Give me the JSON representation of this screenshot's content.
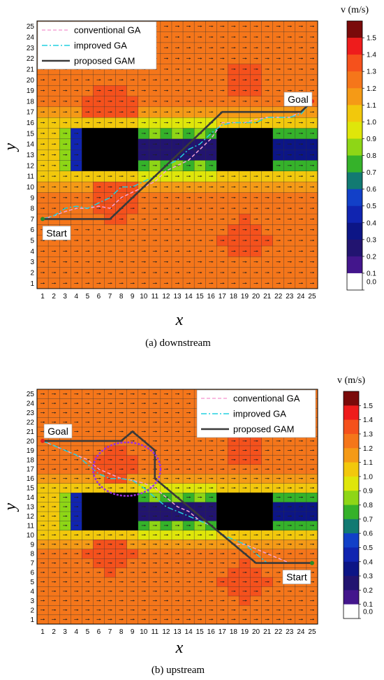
{
  "chart_data": [
    {
      "type": "heatmap",
      "caption": "(a) downstream",
      "xlabel": "x",
      "ylabel": "y",
      "x_ticks": [
        "1",
        "2",
        "3",
        "4",
        "5",
        "6",
        "7",
        "8",
        "9",
        "10",
        "11",
        "12",
        "13",
        "14",
        "15",
        "16",
        "17",
        "18",
        "19",
        "20",
        "21",
        "22",
        "23",
        "24",
        "25"
      ],
      "y_ticks": [
        "1",
        "2",
        "3",
        "4",
        "5",
        "6",
        "7",
        "8",
        "9",
        "10",
        "11",
        "12",
        "13",
        "14",
        "15",
        "16",
        "17",
        "18",
        "19",
        "20",
        "21",
        "22",
        "23",
        "24",
        "25"
      ],
      "flow_direction": "downstream",
      "obstacles": [
        {
          "x": [
            5,
            9
          ],
          "y": [
            12,
            15
          ]
        },
        {
          "x": [
            17,
            21
          ],
          "y": [
            12,
            15
          ]
        }
      ],
      "colorbar": {
        "title": "v (m/s)",
        "ticks": [
          "1.5",
          "1.4",
          "1.3",
          "1.2",
          "1.1",
          "1.0",
          "0.9",
          "0.8",
          "0.7",
          "0.6",
          "0.5",
          "0.4",
          "0.3",
          "0.2",
          "0.1",
          "0.0"
        ],
        "colors": [
          "#7a0a0a",
          "#ee1c1c",
          "#f5511c",
          "#f5761a",
          "#f59a16",
          "#f2c80c",
          "#dfe60a",
          "#8ed616",
          "#35b22a",
          "#127a72",
          "#1240c8",
          "#1024b0",
          "#0c1586",
          "#221470",
          "#43168c",
          "#ffffff"
        ]
      },
      "legend": {
        "position": "top-left",
        "entries": [
          "conventional GA",
          "improved GA",
          "proposed GAM"
        ]
      },
      "annotations": {
        "start": "Start",
        "goal": "Goal"
      },
      "series": [
        {
          "name": "conventional GA",
          "style": "dashed",
          "color": "#f5a4d6",
          "x": [
            1,
            2,
            3,
            4,
            5,
            6,
            7,
            8,
            9,
            10,
            11,
            12,
            13,
            14,
            15,
            16,
            17,
            18,
            19,
            20,
            21,
            22,
            23,
            24,
            25
          ],
          "y": [
            7,
            7.3,
            7.7,
            8,
            8,
            8.2,
            8,
            9,
            9.5,
            10,
            10.5,
            11.5,
            12,
            12.5,
            13.5,
            14.5,
            16,
            16,
            16,
            16.3,
            16.5,
            16.5,
            16.5,
            17,
            18
          ]
        },
        {
          "name": "improved GA",
          "style": "dashdot",
          "color": "#22d0e0",
          "x": [
            1,
            2,
            3,
            4,
            5,
            6,
            7,
            8,
            9,
            10,
            11,
            12,
            13,
            14,
            15,
            16,
            17,
            18,
            19,
            20,
            21,
            22,
            23,
            24,
            25
          ],
          "y": [
            7,
            7.3,
            8,
            8.2,
            8,
            8.5,
            9,
            10,
            10,
            10.5,
            11,
            12,
            12.5,
            13.5,
            14,
            15,
            15.8,
            16,
            16,
            16,
            16.5,
            16.5,
            16.5,
            16.8,
            18
          ]
        },
        {
          "name": "proposed GAM",
          "style": "solid",
          "color": "#3a3a3a",
          "x": [
            1,
            7,
            10,
            17,
            24,
            25
          ],
          "y": [
            7,
            7,
            10,
            17,
            17,
            18
          ]
        }
      ],
      "start": [
        1,
        7
      ],
      "goal": [
        25,
        18
      ]
    },
    {
      "type": "heatmap",
      "caption": "(b) upstream",
      "xlabel": "x",
      "ylabel": "y",
      "x_ticks": [
        "1",
        "2",
        "3",
        "4",
        "5",
        "6",
        "7",
        "8",
        "9",
        "10",
        "11",
        "12",
        "13",
        "14",
        "15",
        "16",
        "17",
        "18",
        "19",
        "20",
        "21",
        "22",
        "23",
        "24",
        "25"
      ],
      "y_ticks": [
        "1",
        "2",
        "3",
        "4",
        "5",
        "6",
        "7",
        "8",
        "9",
        "10",
        "11",
        "12",
        "13",
        "14",
        "15",
        "16",
        "17",
        "18",
        "19",
        "20",
        "21",
        "22",
        "23",
        "24",
        "25"
      ],
      "flow_direction": "upstream",
      "obstacles": [
        {
          "x": [
            5,
            9
          ],
          "y": [
            11,
            14
          ]
        },
        {
          "x": [
            17,
            21
          ],
          "y": [
            11,
            14
          ]
        }
      ],
      "colorbar": {
        "title": "v (m/s)",
        "ticks": [
          "1.5",
          "1.4",
          "1.3",
          "1.2",
          "1.1",
          "1.0",
          "0.9",
          "0.8",
          "0.7",
          "0.6",
          "0.5",
          "0.4",
          "0.3",
          "0.2",
          "0.1",
          "0.0"
        ],
        "colors": [
          "#7a0a0a",
          "#ee1c1c",
          "#f5511c",
          "#f5761a",
          "#f59a16",
          "#f2c80c",
          "#dfe60a",
          "#8ed616",
          "#35b22a",
          "#127a72",
          "#1240c8",
          "#1024b0",
          "#0c1586",
          "#221470",
          "#43168c",
          "#ffffff"
        ]
      },
      "legend": {
        "position": "top-right",
        "entries": [
          "conventional GA",
          "improved GA",
          "proposed GAM"
        ]
      },
      "annotations": {
        "start": "Start",
        "goal": "Goal"
      },
      "highlight_circle": {
        "cx": 8.5,
        "cy": 17,
        "r": 3
      },
      "series": [
        {
          "name": "conventional GA",
          "style": "dashed",
          "color": "#f5a4d6",
          "x": [
            1,
            2,
            3,
            4,
            5,
            6,
            7,
            8,
            9,
            10,
            11,
            12,
            13,
            14,
            15,
            16,
            17,
            18,
            19,
            20,
            21,
            22,
            23,
            24,
            25
          ],
          "y": [
            20,
            19.5,
            19,
            18.5,
            18,
            17,
            16.5,
            16,
            15.8,
            15.5,
            15,
            14,
            13,
            12.5,
            11.5,
            11,
            10,
            9,
            9,
            8.5,
            8,
            7.5,
            7,
            7,
            7
          ]
        },
        {
          "name": "improved GA",
          "style": "dashdot",
          "color": "#22d0e0",
          "x": [
            1,
            2,
            3,
            4,
            5,
            6,
            7,
            8,
            9,
            10,
            11,
            12,
            13,
            14,
            15,
            16,
            17,
            18,
            19,
            20,
            21,
            22,
            23,
            24,
            25
          ],
          "y": [
            20,
            19.5,
            19,
            18.5,
            17.5,
            16.5,
            16,
            16,
            15.8,
            15,
            14,
            13,
            12.5,
            12,
            11.5,
            11,
            10,
            9.5,
            9,
            8,
            7,
            7,
            7,
            7,
            7
          ]
        },
        {
          "name": "proposed GAM",
          "style": "solid",
          "color": "#3a3a3a",
          "x": [
            1,
            8,
            9,
            10,
            11,
            11,
            20,
            25
          ],
          "y": [
            20,
            20,
            21,
            20,
            19,
            16,
            7,
            7
          ]
        }
      ],
      "start": [
        25,
        7
      ],
      "goal": [
        1,
        20
      ]
    }
  ]
}
